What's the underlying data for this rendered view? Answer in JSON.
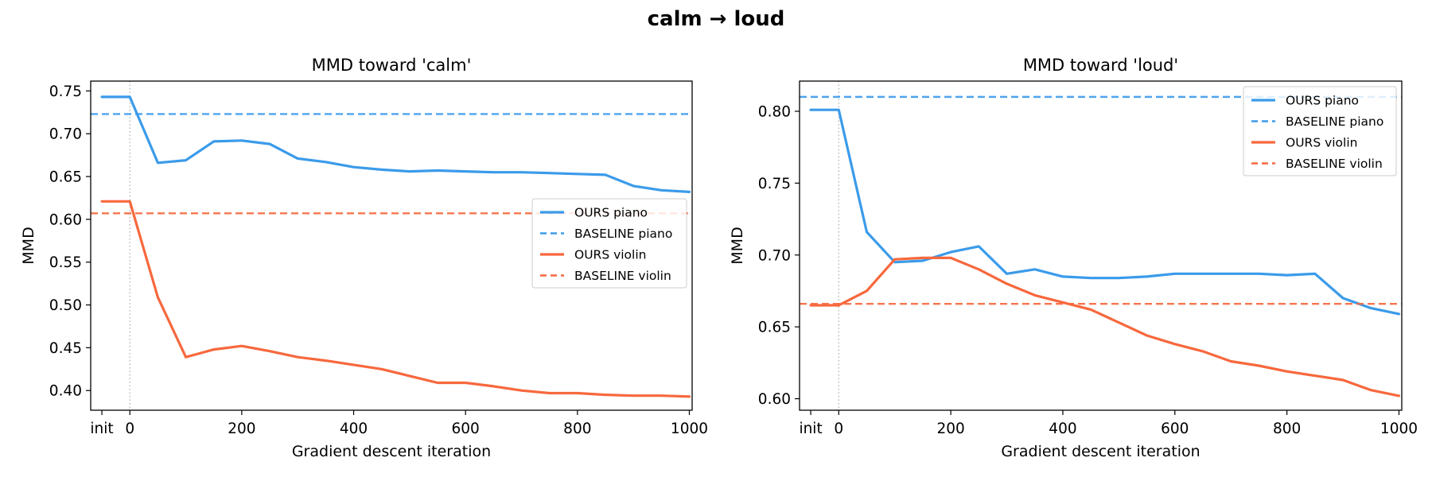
{
  "suptitle": "calm → loud",
  "colors": {
    "piano": "#3b9bea",
    "violin": "#f7683d",
    "vline": "#aaaaaa"
  },
  "chart_data": [
    {
      "type": "line",
      "title": "MMD toward  'calm'",
      "xlabel": "Gradient descent iteration",
      "ylabel": "MMD",
      "x": [
        "init",
        0,
        50,
        100,
        150,
        200,
        250,
        300,
        350,
        400,
        450,
        500,
        550,
        600,
        650,
        700,
        750,
        800,
        850,
        900,
        950,
        1000
      ],
      "x_ticks": [
        {
          "label": "init",
          "pos": "init"
        },
        {
          "label": "0",
          "pos": 0
        },
        {
          "label": "200",
          "pos": 200
        },
        {
          "label": "400",
          "pos": 400
        },
        {
          "label": "600",
          "pos": 600
        },
        {
          "label": "800",
          "pos": 800
        },
        {
          "label": "1000",
          "pos": 1000
        }
      ],
      "y_ticks": [
        "0.75",
        "0.70",
        "0.65",
        "0.60",
        "0.55",
        "0.50",
        "0.45",
        "0.40"
      ],
      "ylim": [
        0.377,
        0.7615
      ],
      "legend_loc": "center-right",
      "series": [
        {
          "name": "OURS piano",
          "style": "solid",
          "color_key": "piano",
          "values": [
            0.743,
            0.743,
            0.666,
            0.669,
            0.691,
            0.692,
            0.688,
            0.671,
            0.667,
            0.661,
            0.658,
            0.656,
            0.657,
            0.656,
            0.655,
            0.655,
            0.654,
            0.653,
            0.652,
            0.639,
            0.634,
            0.632
          ]
        },
        {
          "name": "BASELINE piano",
          "style": "dashed",
          "color_key": "piano",
          "constant": 0.723
        },
        {
          "name": "OURS violin",
          "style": "solid",
          "color_key": "violin",
          "values": [
            0.621,
            0.621,
            0.509,
            0.439,
            0.448,
            0.452,
            0.446,
            0.439,
            0.435,
            0.43,
            0.425,
            0.417,
            0.409,
            0.409,
            0.405,
            0.4,
            0.397,
            0.397,
            0.395,
            0.394,
            0.394,
            0.393
          ]
        },
        {
          "name": "BASELINE violin",
          "style": "dashed",
          "color_key": "violin",
          "constant": 0.607
        }
      ]
    },
    {
      "type": "line",
      "title": "MMD toward  'loud'",
      "xlabel": "Gradient descent iteration",
      "ylabel": "MMD",
      "x": [
        "init",
        0,
        50,
        100,
        150,
        200,
        250,
        300,
        350,
        400,
        450,
        500,
        550,
        600,
        650,
        700,
        750,
        800,
        850,
        900,
        950,
        1000
      ],
      "x_ticks": [
        {
          "label": "init",
          "pos": "init"
        },
        {
          "label": "0",
          "pos": 0
        },
        {
          "label": "200",
          "pos": 200
        },
        {
          "label": "400",
          "pos": 400
        },
        {
          "label": "600",
          "pos": 600
        },
        {
          "label": "800",
          "pos": 800
        },
        {
          "label": "1000",
          "pos": 1000
        }
      ],
      "y_ticks": [
        "0.80",
        "0.75",
        "0.70",
        "0.65",
        "0.60"
      ],
      "ylim": [
        0.592,
        0.821
      ],
      "legend_loc": "upper-right",
      "series": [
        {
          "name": "OURS piano",
          "style": "solid",
          "color_key": "piano",
          "values": [
            0.801,
            0.801,
            0.716,
            0.695,
            0.696,
            0.702,
            0.706,
            0.687,
            0.69,
            0.685,
            0.684,
            0.684,
            0.685,
            0.687,
            0.687,
            0.687,
            0.687,
            0.686,
            0.687,
            0.67,
            0.663,
            0.659
          ]
        },
        {
          "name": "BASELINE piano",
          "style": "dashed",
          "color_key": "piano",
          "constant": 0.81
        },
        {
          "name": "OURS violin",
          "style": "solid",
          "color_key": "violin",
          "values": [
            0.665,
            0.665,
            0.675,
            0.697,
            0.698,
            0.698,
            0.69,
            0.68,
            0.672,
            0.667,
            0.662,
            0.653,
            0.644,
            0.638,
            0.633,
            0.626,
            0.623,
            0.619,
            0.616,
            0.613,
            0.606,
            0.602
          ]
        },
        {
          "name": "BASELINE violin",
          "style": "dashed",
          "color_key": "violin",
          "constant": 0.666
        }
      ]
    }
  ]
}
